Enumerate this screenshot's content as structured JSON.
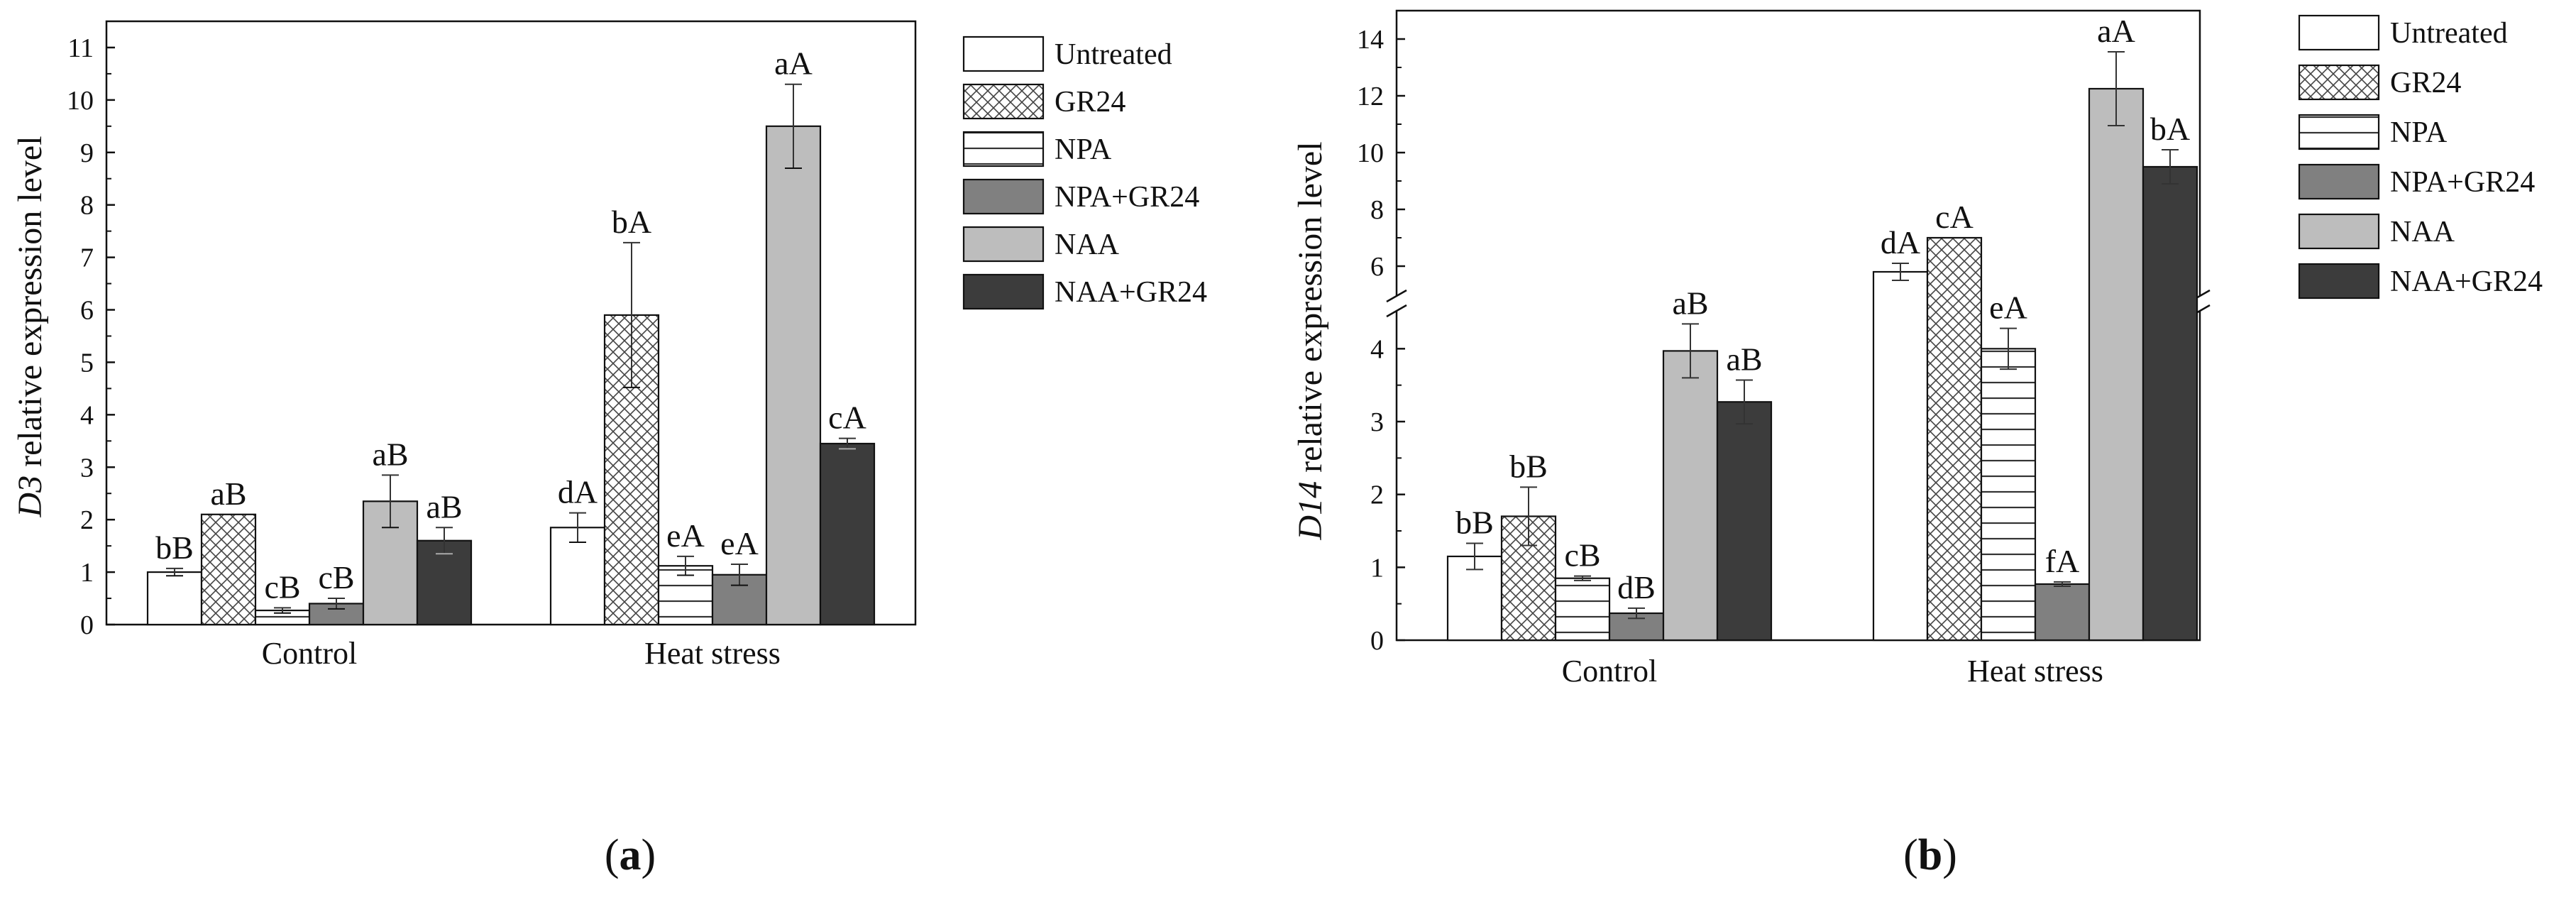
{
  "treatments": [
    "Untreated",
    "GR24",
    "NPA",
    "NPA+GR24",
    "NAA",
    "NAA+GR24"
  ],
  "fills": {
    "Untreated": "#ffffff",
    "GR24": "pattern-crosshatch",
    "NPA": "pattern-horizontal-lines",
    "NPA+GR24": "#808080",
    "NAA": "#bdbdbd",
    "NAA+GR24": "#3c3c3c"
  },
  "chart_data": [
    {
      "type": "bar",
      "panel_label_prefix": "(",
      "panel_label_letter": "a",
      "panel_label_suffix": ")",
      "ylabel_italic": "D3",
      "ylabel_rest": " relative expression level",
      "xlabel": "",
      "categories": [
        "Control",
        "Heat stress"
      ],
      "ylim": [
        0,
        11.5
      ],
      "yticks": [
        0,
        1,
        2,
        3,
        4,
        5,
        6,
        7,
        8,
        9,
        10,
        11
      ],
      "legend_position": "right",
      "series": [
        {
          "name": "Untreated",
          "values": [
            1.0,
            1.85
          ],
          "errors": [
            0.07,
            0.28
          ],
          "labels": [
            "bB",
            "dA"
          ]
        },
        {
          "name": "GR24",
          "values": [
            2.1,
            5.9
          ],
          "errors": [
            0.0,
            1.38
          ],
          "labels": [
            "aB",
            "bA"
          ]
        },
        {
          "name": "NPA",
          "values": [
            0.27,
            1.12
          ],
          "errors": [
            0.05,
            0.18
          ],
          "labels": [
            "cB",
            "eA"
          ]
        },
        {
          "name": "NPA+GR24",
          "values": [
            0.4,
            0.95
          ],
          "errors": [
            0.1,
            0.2
          ],
          "labels": [
            "cB",
            "eA"
          ]
        },
        {
          "name": "NAA",
          "values": [
            2.35,
            9.5
          ],
          "errors": [
            0.5,
            0.8
          ],
          "labels": [
            "aB",
            "aA"
          ]
        },
        {
          "name": "NAA+GR24",
          "values": [
            1.6,
            3.45
          ],
          "errors": [
            0.25,
            0.1
          ],
          "labels": [
            "aB",
            "cA"
          ]
        }
      ]
    },
    {
      "type": "bar",
      "panel_label_prefix": "(",
      "panel_label_letter": "b",
      "panel_label_suffix": ")",
      "ylabel_italic": "D14",
      "ylabel_rest": " relative expression level",
      "xlabel": "",
      "categories": [
        "Control",
        "Heat stress"
      ],
      "broken_axis": true,
      "ylim_lower": [
        0,
        4.5
      ],
      "ylim_upper": [
        5,
        15
      ],
      "yticks_lower": [
        0,
        1,
        2,
        3,
        4
      ],
      "yticks_upper": [
        6,
        8,
        10,
        12,
        14
      ],
      "legend_position": "right",
      "series": [
        {
          "name": "Untreated",
          "values": [
            1.15,
            5.8
          ],
          "errors": [
            0.18,
            0.3
          ],
          "labels": [
            "bB",
            "dA"
          ]
        },
        {
          "name": "GR24",
          "values": [
            1.7,
            7.0
          ],
          "errors": [
            0.4,
            0.0
          ],
          "labels": [
            "bB",
            "cA"
          ]
        },
        {
          "name": "NPA",
          "values": [
            0.85,
            4.0
          ],
          "errors": [
            0.03,
            0.28
          ],
          "labels": [
            "cB",
            "eA"
          ]
        },
        {
          "name": "NPA+GR24",
          "values": [
            0.37,
            0.77
          ],
          "errors": [
            0.07,
            0.03
          ],
          "labels": [
            "dB",
            "fA"
          ]
        },
        {
          "name": "NAA",
          "values": [
            3.97,
            12.25
          ],
          "errors": [
            0.37,
            1.3
          ],
          "labels": [
            "aB",
            "aA"
          ]
        },
        {
          "name": "NAA+GR24",
          "values": [
            3.27,
            9.5
          ],
          "errors": [
            0.3,
            0.6
          ],
          "labels": [
            "aB",
            "bA"
          ]
        }
      ]
    }
  ]
}
